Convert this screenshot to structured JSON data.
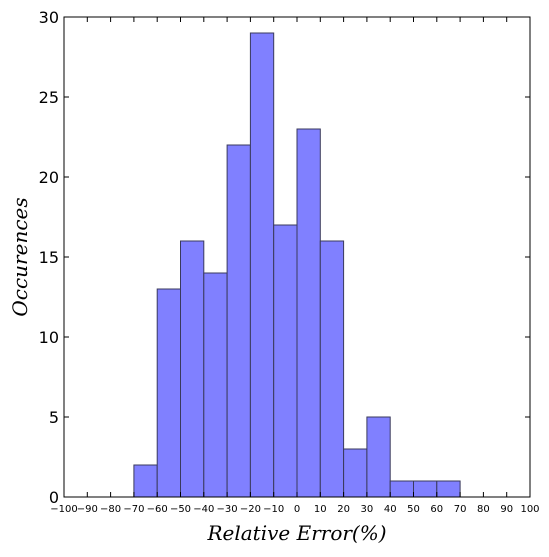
{
  "chart_data": {
    "type": "bar",
    "title": "",
    "xlabel": "Relative Error(%)",
    "ylabel": "Occurences",
    "xlim": [
      -100,
      100
    ],
    "ylim": [
      0,
      30
    ],
    "x_ticks": [
      -100,
      -90,
      -80,
      -70,
      -60,
      -50,
      -40,
      -30,
      -20,
      -10,
      0,
      10,
      20,
      30,
      40,
      50,
      60,
      70,
      80,
      90,
      100
    ],
    "y_ticks": [
      0,
      5,
      10,
      15,
      20,
      25,
      30
    ],
    "grid": false,
    "bar_color": "#8080ff",
    "edge_color": "#3a3a5c",
    "bins": [
      {
        "from": -70,
        "to": -60,
        "value": 2
      },
      {
        "from": -60,
        "to": -50,
        "value": 13
      },
      {
        "from": -50,
        "to": -40,
        "value": 16
      },
      {
        "from": -40,
        "to": -30,
        "value": 14
      },
      {
        "from": -30,
        "to": -20,
        "value": 22
      },
      {
        "from": -20,
        "to": -10,
        "value": 29
      },
      {
        "from": -10,
        "to": 0,
        "value": 17
      },
      {
        "from": 0,
        "to": 10,
        "value": 23
      },
      {
        "from": 10,
        "to": 20,
        "value": 16
      },
      {
        "from": 20,
        "to": 30,
        "value": 3
      },
      {
        "from": 30,
        "to": 40,
        "value": 5
      },
      {
        "from": 40,
        "to": 50,
        "value": 1
      },
      {
        "from": 50,
        "to": 60,
        "value": 1
      },
      {
        "from": 60,
        "to": 70,
        "value": 1
      }
    ]
  }
}
